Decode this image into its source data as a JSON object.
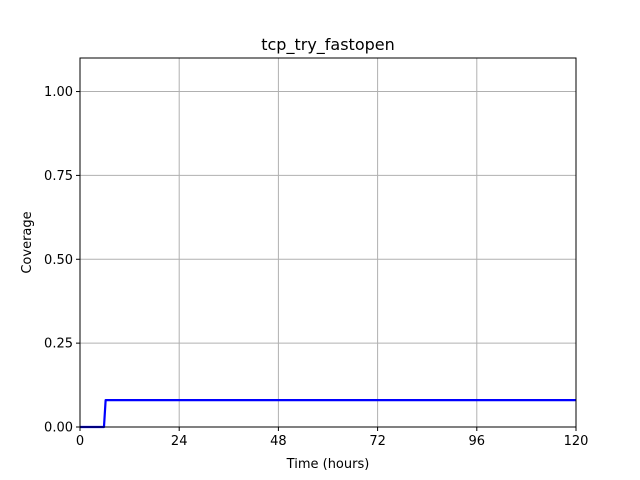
{
  "chart_data": {
    "type": "line",
    "title": "tcp_try_fastopen",
    "xlabel": "Time (hours)",
    "ylabel": "Coverage",
    "xlim": [
      0,
      120
    ],
    "ylim": [
      0,
      1.1
    ],
    "x_ticks": [
      0,
      24,
      48,
      72,
      96,
      120
    ],
    "x_tick_labels": [
      "0",
      "24",
      "48",
      "72",
      "96",
      "120"
    ],
    "y_ticks": [
      0,
      0.25,
      0.5,
      0.75,
      1.0
    ],
    "y_tick_labels": [
      "0.00",
      "0.25",
      "0.50",
      "0.75",
      "1.00"
    ],
    "grid": true,
    "series": [
      {
        "color": "#0000ff",
        "x": [
          0,
          5.8,
          6.2,
          120
        ],
        "y": [
          0,
          0,
          0.08,
          0.08
        ]
      }
    ]
  }
}
